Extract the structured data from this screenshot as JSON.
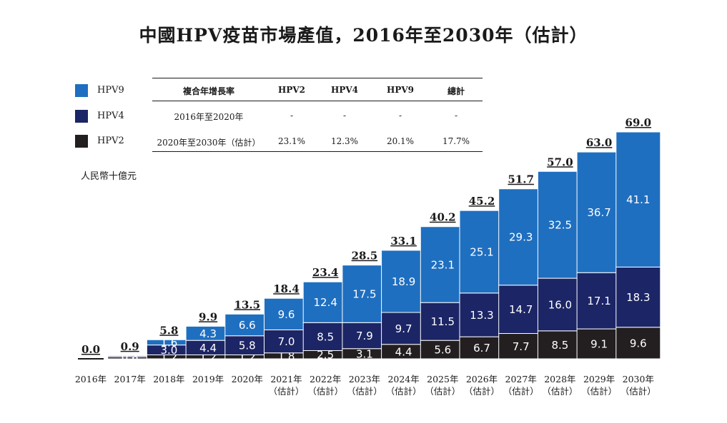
{
  "title": "中國HPV疫苗市場產值，2016年至2030年（估計）",
  "legend": [
    {
      "label": "HPV9",
      "color": "#1f6fc0"
    },
    {
      "label": "HPV4",
      "color": "#1c2565"
    },
    {
      "label": "HPV2",
      "color": "#231f20"
    }
  ],
  "cagr_table": {
    "header": [
      "複合年增長率",
      "HPV2",
      "HPV4",
      "HPV9",
      "總計"
    ],
    "rows": [
      [
        "2016年至2020年",
        "-",
        "-",
        "-",
        "-"
      ],
      [
        "2020年至2030年（估計）",
        "23.1%",
        "12.3%",
        "20.1%",
        "17.7%"
      ]
    ]
  },
  "unit_label": "人民幣十億元",
  "chart_data": {
    "type": "bar",
    "stacked": true,
    "categories": [
      "2016年",
      "2017年",
      "2018年",
      "2019年",
      "2020年",
      "2021年\n（估計）",
      "2022年\n（估計）",
      "2023年\n（估計）",
      "2024年\n（估計）",
      "2025年\n（估計）",
      "2026年\n（估計）",
      "2027年\n（估計）",
      "2028年\n（估計）",
      "2029年\n（估計）",
      "2030年\n（估計）"
    ],
    "series": [
      {
        "name": "HPV2",
        "color": "#231f20",
        "values": [
          0.0,
          0.6,
          1.2,
          1.2,
          1.2,
          1.8,
          2.5,
          3.1,
          4.4,
          5.6,
          6.7,
          7.7,
          8.5,
          9.1,
          9.6
        ]
      },
      {
        "name": "HPV4",
        "color": "#1c2565",
        "values": [
          0.0,
          0.3,
          3.0,
          4.4,
          5.8,
          7.0,
          8.5,
          7.9,
          9.7,
          11.5,
          13.3,
          14.7,
          16.0,
          17.1,
          18.3
        ]
      },
      {
        "name": "HPV9",
        "color": "#1f6fc0",
        "values": [
          0.0,
          0.0,
          1.6,
          4.3,
          6.6,
          9.6,
          12.4,
          17.5,
          18.9,
          23.1,
          25.1,
          29.3,
          32.5,
          36.7,
          41.1
        ]
      }
    ],
    "totals": [
      "0.0",
      "0.9",
      "5.8",
      "9.9",
      "13.5",
      "18.4",
      "23.4",
      "28.5",
      "33.1",
      "40.2",
      "45.2",
      "51.7",
      "57.0",
      "63.0",
      "69.0"
    ],
    "ylim": [
      0,
      70
    ]
  }
}
